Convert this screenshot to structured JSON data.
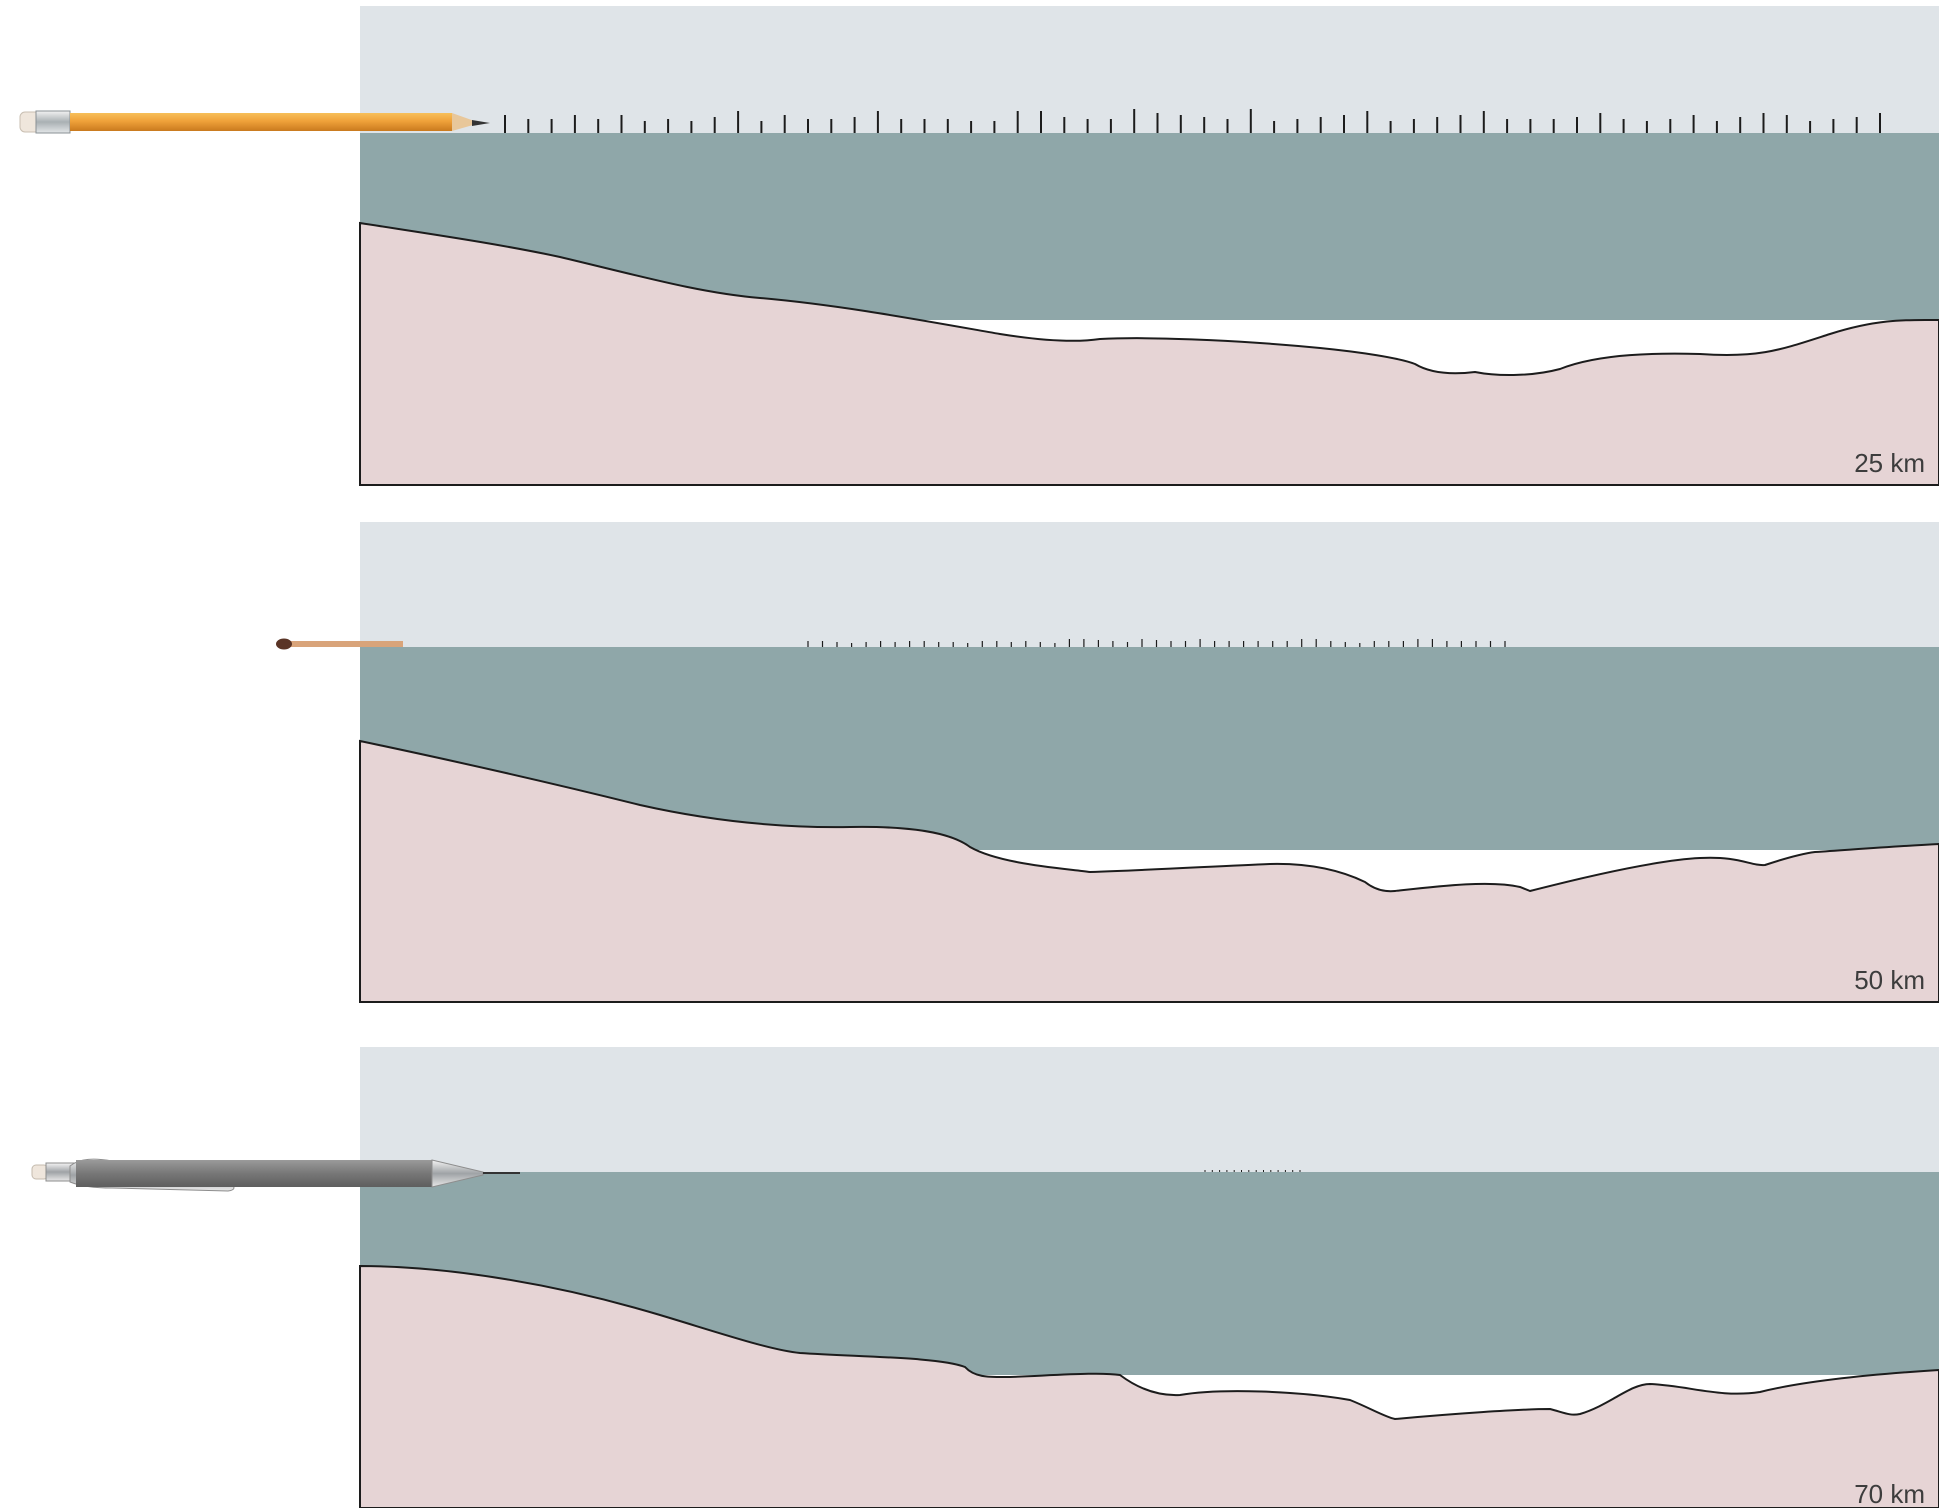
{
  "panels": [
    {
      "id": "panel-25km",
      "scale_label": "25 km",
      "object": "wooden-pencil",
      "sky_color": "#dfe4e8",
      "water_color": "#8fa7a9",
      "ground_color": "#e6d4d5",
      "ship_mark_heights": [
        18,
        14,
        14,
        18,
        14,
        18,
        12,
        14,
        12,
        16,
        22,
        12,
        18,
        14,
        14,
        16,
        22,
        14,
        14,
        14,
        12,
        12,
        22,
        22,
        16,
        14,
        14,
        24,
        20,
        18,
        16,
        14,
        24,
        12,
        14,
        16,
        18,
        22,
        12,
        14,
        16,
        18,
        22,
        14,
        14,
        14,
        16,
        20,
        14,
        12,
        14,
        18,
        12,
        16,
        20,
        18,
        12,
        14,
        16,
        20
      ]
    },
    {
      "id": "panel-50km",
      "scale_label": "50 km",
      "object": "matchstick",
      "sky_color": "#dfe4e8",
      "water_color": "#8fa7a9",
      "ground_color": "#e6d4d5",
      "ship_mark_heights": [
        6,
        6,
        5,
        4,
        5,
        6,
        5,
        6,
        6,
        5,
        5,
        4,
        6,
        6,
        5,
        6,
        5,
        4,
        8,
        8,
        7,
        6,
        5,
        8,
        7,
        6,
        6,
        8,
        6,
        6,
        6,
        6,
        6,
        6,
        8,
        8,
        6,
        5,
        4,
        6,
        6,
        6,
        8,
        8,
        6,
        6,
        6,
        6,
        6
      ]
    },
    {
      "id": "panel-70km",
      "scale_label": "70 km",
      "object": "mechanical-pencil",
      "sky_color": "#dfe4e8",
      "water_color": "#8fa7a9",
      "ground_color": "#e6d4d5",
      "ship_mark_heights": [
        2,
        2,
        2,
        2,
        2,
        2,
        2,
        2,
        2,
        2,
        2,
        2,
        2,
        2
      ]
    }
  ],
  "colors": {
    "outline": "#1c1c1c",
    "pencil_body": "#f0a13a",
    "match_stick": "#d9a47a",
    "match_head": "#5a3426",
    "mech_pencil_body": "#7b7b7b"
  }
}
